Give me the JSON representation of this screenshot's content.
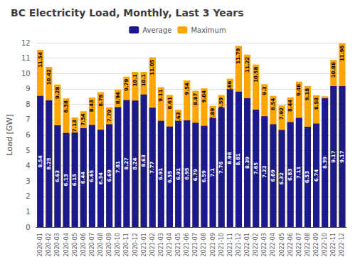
{
  "chart_data": {
    "type": "bar",
    "title": "BC Electricity Load, Monthly, Last 3 Years",
    "ylabel": "Load [GW]",
    "categories": [
      "2020-01",
      "2020-02",
      "2020-03",
      "2020-04",
      "2020-05",
      "2020-06",
      "2020-07",
      "2020-08",
      "2020-09",
      "2020-10",
      "2020-11",
      "2020-12",
      "2021-01",
      "2021-02",
      "2021-03",
      "2021-04",
      "2021-05",
      "2021-06",
      "2021-07",
      "2021-08",
      "2021-09",
      "2021-10",
      "2021-11",
      "2021-12",
      "2022-01",
      "2022-02",
      "2022-03",
      "2022-04",
      "2022-05",
      "2022-06",
      "2022-07",
      "2022-08",
      "2022-09",
      "2022-10",
      "2022-11",
      "2022-12"
    ],
    "series": [
      {
        "name": "Average",
        "color": "#1a1a8c",
        "values": [
          8.54,
          8.25,
          6.63,
          6.13,
          6.15,
          6.44,
          6.65,
          6.34,
          6.69,
          7.81,
          8.27,
          8.24,
          8.63,
          7.77,
          6.91,
          6.55,
          6.91,
          6.95,
          6.79,
          6.59,
          7.1,
          7.76,
          8.98,
          8.81,
          8.39,
          7.65,
          7.22,
          6.69,
          6.32,
          6.83,
          7.11,
          6.53,
          6.74,
          8.39,
          9.17,
          9.17
        ]
      },
      {
        "name": "Maximum",
        "color": "#ffa500",
        "values": [
          11.54,
          10.42,
          9.28,
          8.38,
          7.13,
          7.54,
          8.43,
          8.78,
          7.79,
          8.94,
          9.79,
          10.1,
          10.1,
          11.05,
          9.11,
          8.61,
          7.63,
          9.54,
          8.87,
          9.04,
          7.89,
          8.59,
          9.66,
          11.79,
          11.22,
          10.58,
          9.3,
          8.54,
          7.92,
          8.44,
          9.46,
          9.18,
          8.58,
          8.51,
          10.88,
          11.96
        ]
      }
    ],
    "ylim": [
      0,
      12
    ],
    "yticks": [
      0,
      1,
      2,
      3,
      4,
      5,
      6,
      7,
      8,
      9,
      10,
      11,
      12
    ],
    "grid": true,
    "legend": "top",
    "data_labels": true
  }
}
